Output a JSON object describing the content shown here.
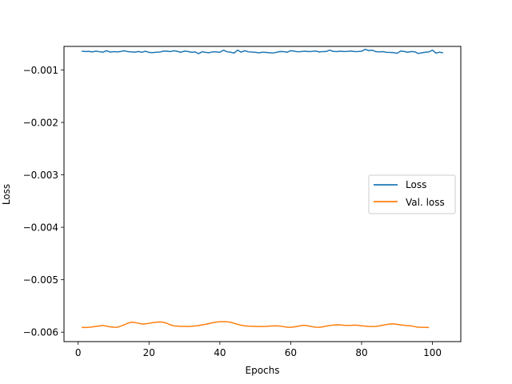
{
  "chart_data": {
    "type": "line",
    "title": "",
    "xlabel": "Epochs",
    "ylabel": "Loss",
    "xlim": [
      -4,
      108
    ],
    "ylim": [
      -0.00618,
      -0.00055
    ],
    "xticks": [
      0,
      20,
      40,
      60,
      80,
      100
    ],
    "yticks": [
      -0.006,
      -0.005,
      -0.004,
      -0.003,
      -0.002,
      -0.001
    ],
    "ytick_labels": [
      "−0.006",
      "−0.005",
      "−0.004",
      "−0.003",
      "−0.002",
      "−0.001"
    ],
    "grid": false,
    "legend": "center-right",
    "x_start": 1,
    "series": [
      {
        "name": "Loss",
        "color": "#1f77b4",
        "values": [
          -0.000642,
          -0.000648,
          -0.000645,
          -0.000655,
          -0.00064,
          -0.000652,
          -0.00066,
          -0.000632,
          -0.000658,
          -0.00065,
          -0.000655,
          -0.000648,
          -0.000632,
          -0.00065,
          -0.000655,
          -0.00066,
          -0.000648,
          -0.000662,
          -0.000642,
          -0.000665,
          -0.000668,
          -0.00066,
          -0.000658,
          -0.000642,
          -0.00064,
          -0.00065,
          -0.000632,
          -0.000645,
          -0.000662,
          -0.00064,
          -0.000648,
          -0.000662,
          -0.000655,
          -0.000688,
          -0.000652,
          -0.000665,
          -0.00067,
          -0.000652,
          -0.000655,
          -0.000662,
          -0.000622,
          -0.000652,
          -0.00066,
          -0.000678,
          -0.00062,
          -0.00066,
          -0.000632,
          -0.000652,
          -0.000658,
          -0.000662,
          -0.000672,
          -0.00066,
          -0.000665,
          -0.00067,
          -0.000675,
          -0.000662,
          -0.000648,
          -0.00065,
          -0.000662,
          -0.000632,
          -0.000642,
          -0.000652,
          -0.000648,
          -0.000642,
          -0.00065,
          -0.000645,
          -0.000638,
          -0.000655,
          -0.00065,
          -0.000648,
          -0.000622,
          -0.000645,
          -0.00065,
          -0.000642,
          -0.000648,
          -0.000645,
          -0.000638,
          -0.00065,
          -0.000648,
          -0.000642,
          -0.000605,
          -0.00063,
          -0.000622,
          -0.00065,
          -0.000655,
          -0.00065,
          -0.000662,
          -0.000665,
          -0.000668,
          -0.000682,
          -0.00064,
          -0.000645,
          -0.000662,
          -0.000648,
          -0.000652,
          -0.000685,
          -0.000672,
          -0.00066,
          -0.000655,
          -0.000622,
          -0.000678,
          -0.00066,
          -0.000672
        ]
      },
      {
        "name": "Val. loss",
        "color": "#ff7f0e",
        "values": [
          -0.00591,
          -0.005912,
          -0.005908,
          -0.0059,
          -0.00589,
          -0.00588,
          -0.005872,
          -0.005885,
          -0.005898,
          -0.005905,
          -0.005908,
          -0.005885,
          -0.00586,
          -0.00583,
          -0.00581,
          -0.005815,
          -0.00583,
          -0.005845,
          -0.00584,
          -0.005832,
          -0.00582,
          -0.00581,
          -0.005805,
          -0.005812,
          -0.00583,
          -0.00586,
          -0.00588,
          -0.005885,
          -0.00589,
          -0.00589,
          -0.005892,
          -0.005888,
          -0.00588,
          -0.005875,
          -0.00586,
          -0.00585,
          -0.005835,
          -0.00582,
          -0.005808,
          -0.0058,
          -0.0058,
          -0.005802,
          -0.00581,
          -0.00583,
          -0.00585,
          -0.005868,
          -0.00588,
          -0.005885,
          -0.005888,
          -0.00589,
          -0.005892,
          -0.005892,
          -0.00589,
          -0.005885,
          -0.00588,
          -0.00588,
          -0.005885,
          -0.005895,
          -0.005905,
          -0.005908,
          -0.0059,
          -0.005888,
          -0.005872,
          -0.00587,
          -0.00588,
          -0.005895,
          -0.005905,
          -0.005908,
          -0.0059,
          -0.005885,
          -0.005872,
          -0.005865,
          -0.00586,
          -0.005862,
          -0.00587,
          -0.005872,
          -0.00587,
          -0.005865,
          -0.00587,
          -0.005878,
          -0.005885,
          -0.00589,
          -0.005892,
          -0.00589,
          -0.00588,
          -0.005868,
          -0.005855,
          -0.005845,
          -0.005842,
          -0.00585,
          -0.005862,
          -0.00587,
          -0.005875,
          -0.00588,
          -0.005895,
          -0.005905,
          -0.005908,
          -0.00591,
          -0.005912
        ]
      }
    ]
  }
}
